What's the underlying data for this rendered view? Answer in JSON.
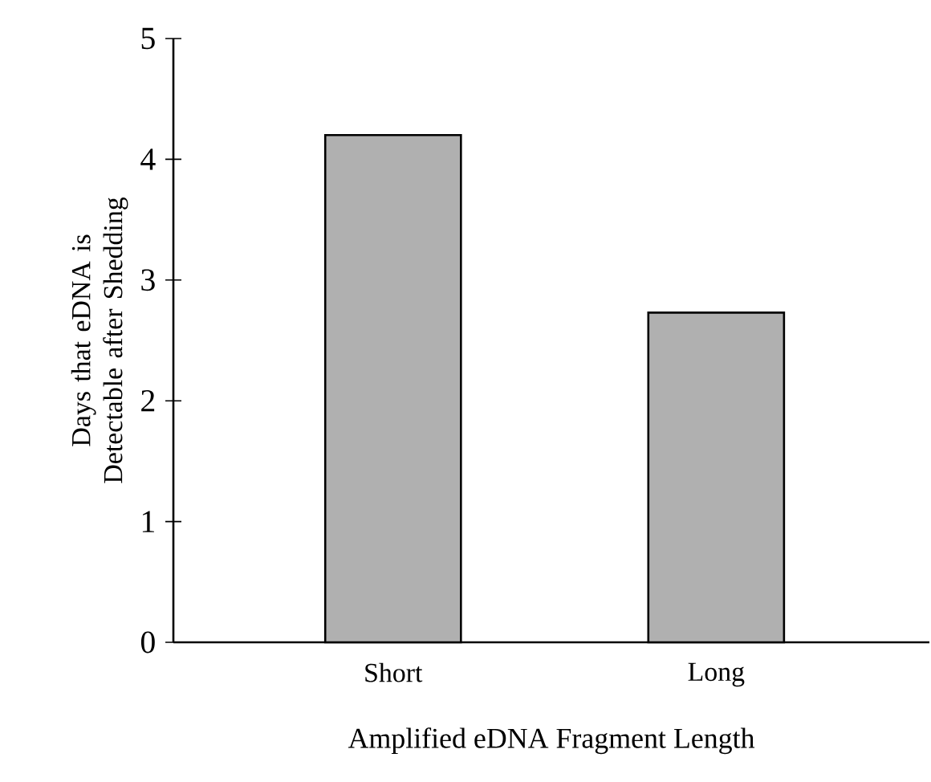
{
  "chart_data": {
    "type": "bar",
    "xlabel": "Amplified eDNA Fragment Length",
    "ylabel": "Days that eDNA is Detectable after Shedding",
    "categories": [
      "Short",
      "Long"
    ],
    "values": [
      4.2,
      2.73
    ],
    "color": "#b0b0b0",
    "ylim": [
      0,
      5
    ],
    "yticks": [
      0,
      1,
      2,
      3,
      4,
      5
    ]
  }
}
